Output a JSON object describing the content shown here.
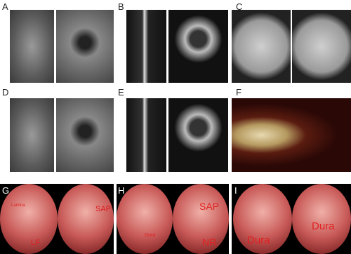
{
  "panels": [
    {
      "label": "A"
    },
    {
      "label": "B"
    },
    {
      "label": "C"
    },
    {
      "label": "D"
    },
    {
      "label": "E"
    },
    {
      "label": "F"
    },
    {
      "label": "G",
      "annotations": [
        "Lamina",
        "LF",
        "SAP"
      ]
    },
    {
      "label": "H",
      "annotations": [
        "Dura",
        "SAP",
        "NR"
      ]
    },
    {
      "label": "I",
      "annotations": [
        "Dura",
        "Dura"
      ]
    }
  ]
}
